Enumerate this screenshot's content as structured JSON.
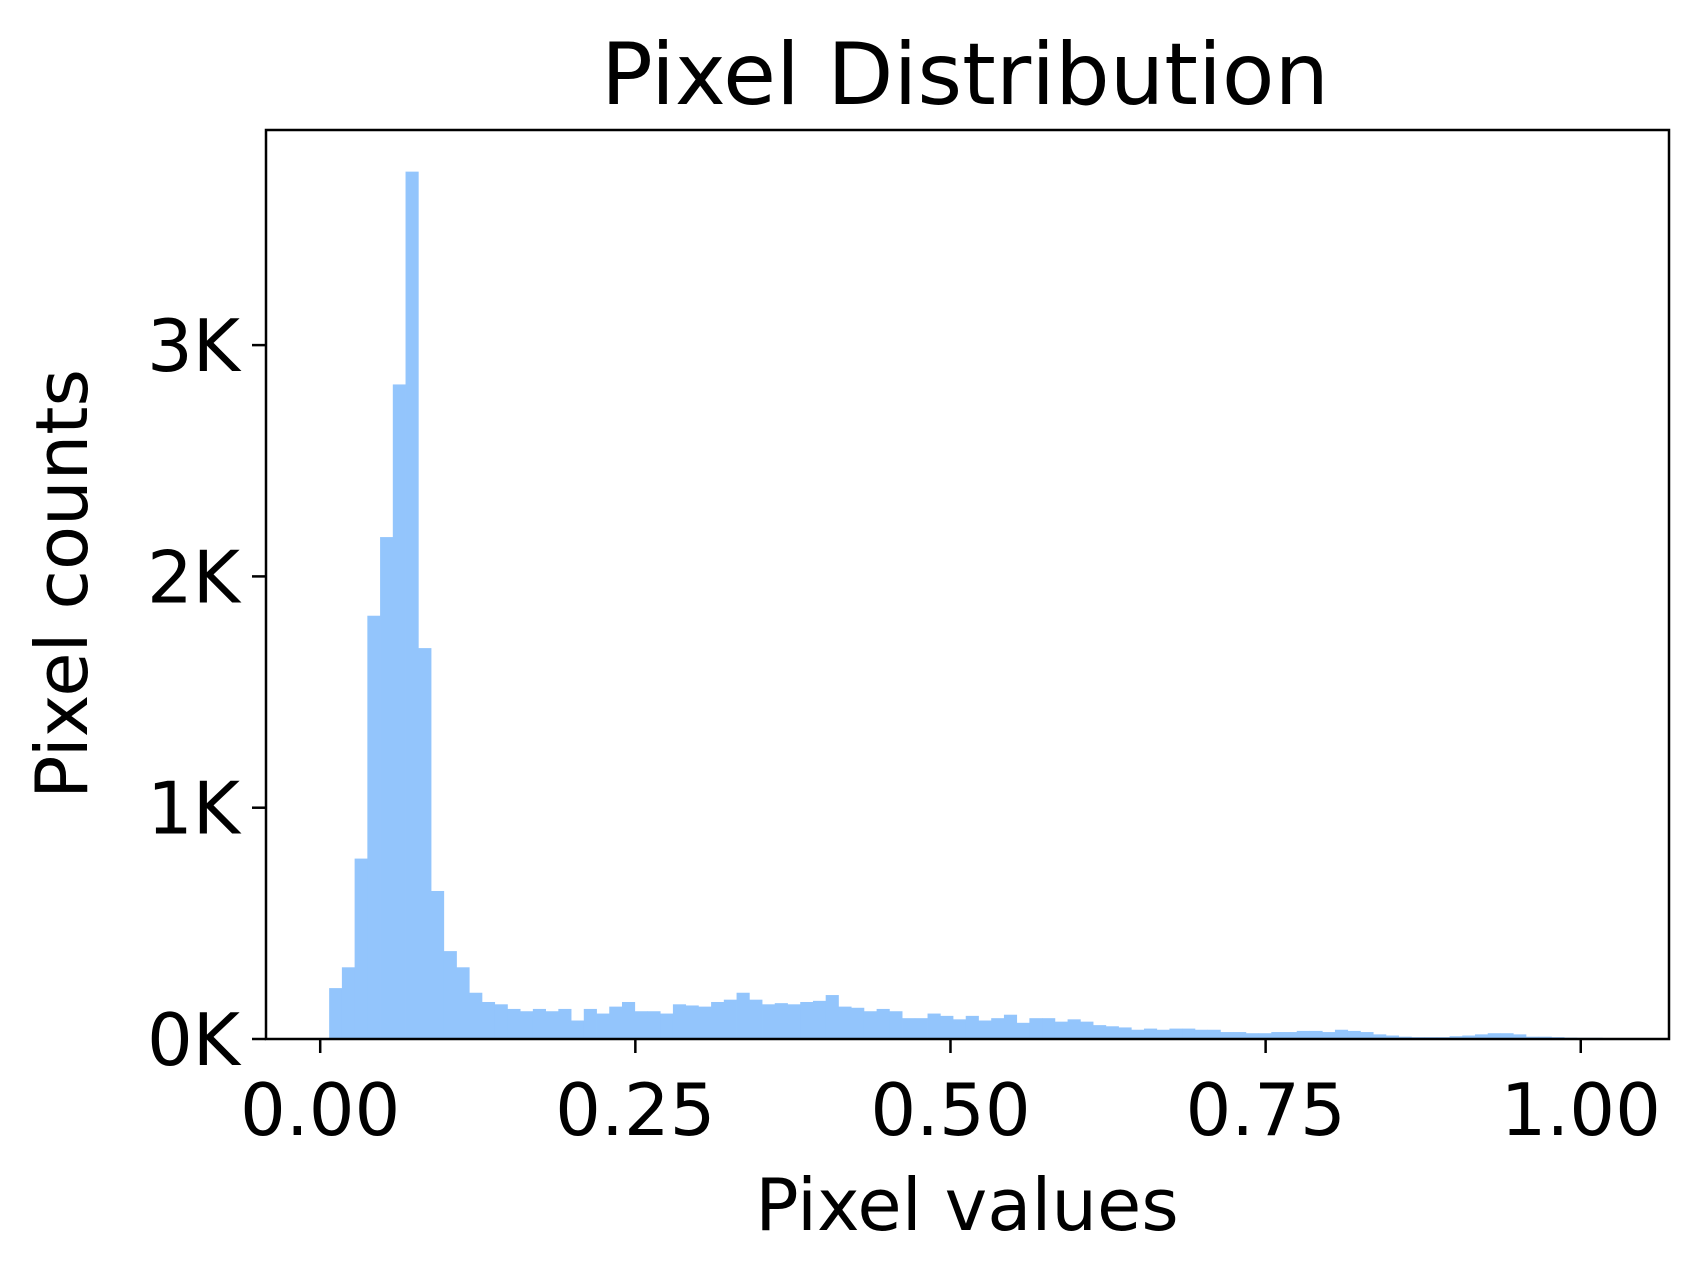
{
  "chart_data": {
    "type": "bar",
    "title": "Pixel Distribution",
    "xlabel": "Pixel values",
    "ylabel": "Pixel counts",
    "xlim": [
      -0.043,
      1.07
    ],
    "ylim": [
      0,
      3930
    ],
    "grid": false,
    "legend": "none",
    "bar_color": "#93c5fc",
    "x_ticks": [
      {
        "value": 0.0,
        "label": "0.00"
      },
      {
        "value": 0.25,
        "label": "0.25"
      },
      {
        "value": 0.5,
        "label": "0.50"
      },
      {
        "value": 0.75,
        "label": "0.75"
      },
      {
        "value": 1.0,
        "label": "1.00"
      }
    ],
    "y_ticks": [
      {
        "value": 0,
        "label": "0K"
      },
      {
        "value": 1000,
        "label": "1K"
      },
      {
        "value": 2000,
        "label": "2K"
      },
      {
        "value": 3000,
        "label": "3K"
      }
    ],
    "bin_start": 0.0071,
    "bin_width": 0.0101,
    "values": [
      220,
      310,
      780,
      1830,
      2170,
      2830,
      3750,
      1690,
      640,
      380,
      310,
      200,
      160,
      150,
      130,
      120,
      130,
      120,
      130,
      80,
      130,
      110,
      140,
      160,
      120,
      120,
      110,
      150,
      145,
      140,
      160,
      170,
      200,
      170,
      150,
      155,
      150,
      160,
      165,
      190,
      140,
      135,
      120,
      130,
      120,
      90,
      90,
      110,
      100,
      85,
      100,
      80,
      90,
      105,
      70,
      90,
      90,
      75,
      85,
      75,
      60,
      55,
      50,
      40,
      45,
      40,
      45,
      45,
      40,
      40,
      30,
      30,
      25,
      25,
      30,
      30,
      35,
      35,
      30,
      40,
      35,
      30,
      20,
      15,
      10,
      8,
      8,
      8,
      12,
      15,
      20,
      25,
      25,
      20,
      10,
      10,
      8,
      6,
      5,
      5
    ]
  }
}
